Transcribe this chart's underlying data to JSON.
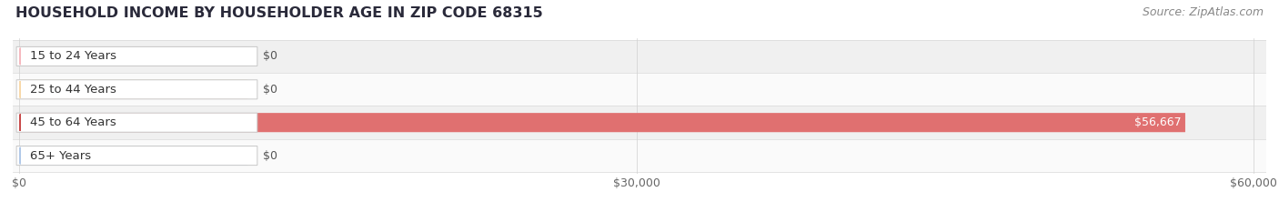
{
  "title": "HOUSEHOLD INCOME BY HOUSEHOLDER AGE IN ZIP CODE 68315",
  "source": "Source: ZipAtlas.com",
  "categories": [
    "15 to 24 Years",
    "25 to 44 Years",
    "45 to 64 Years",
    "65+ Years"
  ],
  "values": [
    0,
    0,
    56667,
    0
  ],
  "bar_colors": [
    "#f0a0a8",
    "#f5c88a",
    "#e07070",
    "#a8bede"
  ],
  "pill_colors": [
    "#f5b8be",
    "#f8d8a8",
    "#c84848",
    "#b0c8e8"
  ],
  "bar_labels": [
    "$0",
    "$0",
    "$56,667",
    "$0"
  ],
  "label_text_colors": [
    "#444444",
    "#444444",
    "#ffffff",
    "#444444"
  ],
  "row_bg_colors": [
    "#f0f0f0",
    "#fafafa",
    "#f0f0f0",
    "#fafafa"
  ],
  "xlim_max": 60000,
  "xtick_values": [
    0,
    30000,
    60000
  ],
  "xticklabels": [
    "$0",
    "$30,000",
    "$60,000"
  ],
  "background_color": "#ffffff",
  "title_fontsize": 11.5,
  "source_fontsize": 9
}
